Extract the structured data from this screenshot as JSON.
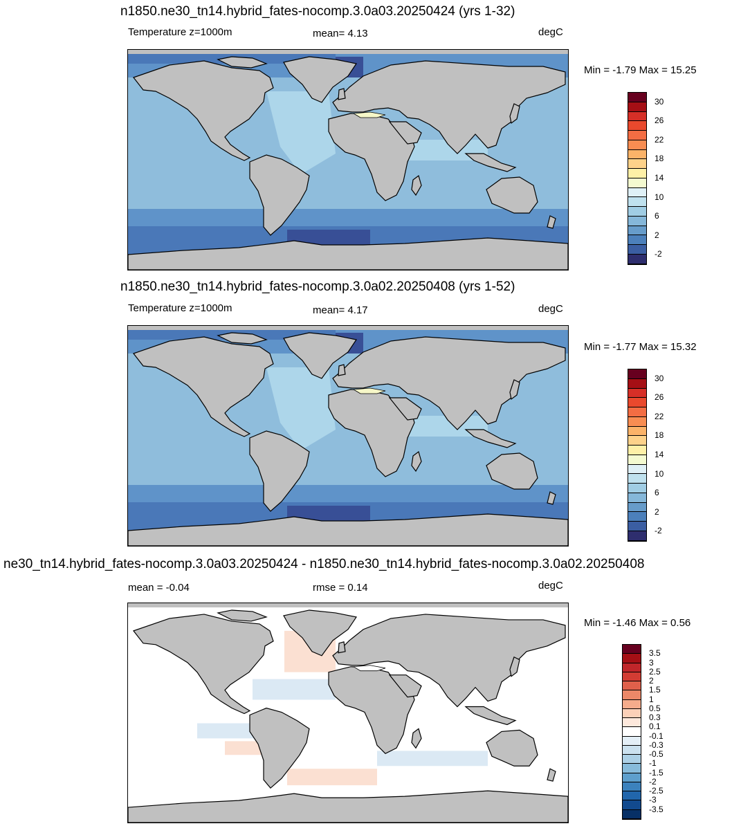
{
  "panels": [
    {
      "title": "n1850.ne30_tn14.hybrid_fates-nocomp.3.0a03.20250424 (yrs 1-32)",
      "left_label": "Temperature z=1000m",
      "center_label": "mean=   4.13",
      "units": "degC",
      "minmax": "Min =  -1.79 Max =  15.25"
    },
    {
      "title": "n1850.ne30_tn14.hybrid_fates-nocomp.3.0a02.20250408 (yrs 1-52)",
      "left_label": "Temperature z=1000m",
      "center_label": "mean=   4.17",
      "units": "degC",
      "minmax": "Min =  -1.77 Max =  15.32"
    },
    {
      "title": "ne30_tn14.hybrid_fates-nocomp.3.0a03.20250424 - n1850.ne30_tn14.hybrid_fates-nocomp.3.0a02.20250408",
      "left_label": "mean =  -0.04",
      "center_label": "rmse =   0.14",
      "units": "degC",
      "minmax": "Min =  -1.46 Max =   0.56"
    }
  ],
  "colorbar_abs": {
    "colors": [
      "#67001f",
      "#a50f15",
      "#d62f27",
      "#e9492d",
      "#f36d43",
      "#f88d52",
      "#fbb369",
      "#fdd28a",
      "#fef0a7",
      "#f4fad0",
      "#dff0f6",
      "#bfe1ee",
      "#a0cde4",
      "#85b7d9",
      "#679cca",
      "#4c80bb",
      "#3b5ea2",
      "#2e2e6e"
    ],
    "labels": [
      "30",
      "26",
      "22",
      "18",
      "14",
      "10",
      "6",
      "2",
      "-2"
    ]
  },
  "colorbar_diff": {
    "colors": [
      "#67001f",
      "#a50f15",
      "#c0262a",
      "#d23c33",
      "#e0604b",
      "#ec8868",
      "#f5ac8c",
      "#fbd0b8",
      "#fde8dc",
      "#ffffff",
      "#e4eff7",
      "#cbe1ef",
      "#acd0e6",
      "#87bbdb",
      "#5e9fcd",
      "#3c82bd",
      "#2166ac",
      "#124a8e",
      "#073066"
    ],
    "labels": [
      "3.5",
      "3",
      "2.5",
      "2",
      "1.5",
      "1",
      "0.5",
      "0.3",
      "0.1",
      "-0.1",
      "-0.3",
      "-0.5",
      "-1",
      "-1.5",
      "-2",
      "-2.5",
      "-3",
      "-3.5"
    ]
  },
  "map_colors": {
    "land": "#c0c0c0",
    "coast": "#000000",
    "ocean_main": "#8fbddc",
    "ocean_warm": "#add6ea",
    "ocean_cold": "#5f93c9",
    "ocean_colder": "#4a78b8",
    "ocean_coldest": "#384f96",
    "med": "#f6f7c8",
    "diff_bg": "#ffffff",
    "diff_blue": "#dbe9f4",
    "diff_red": "#fbe0d2"
  }
}
